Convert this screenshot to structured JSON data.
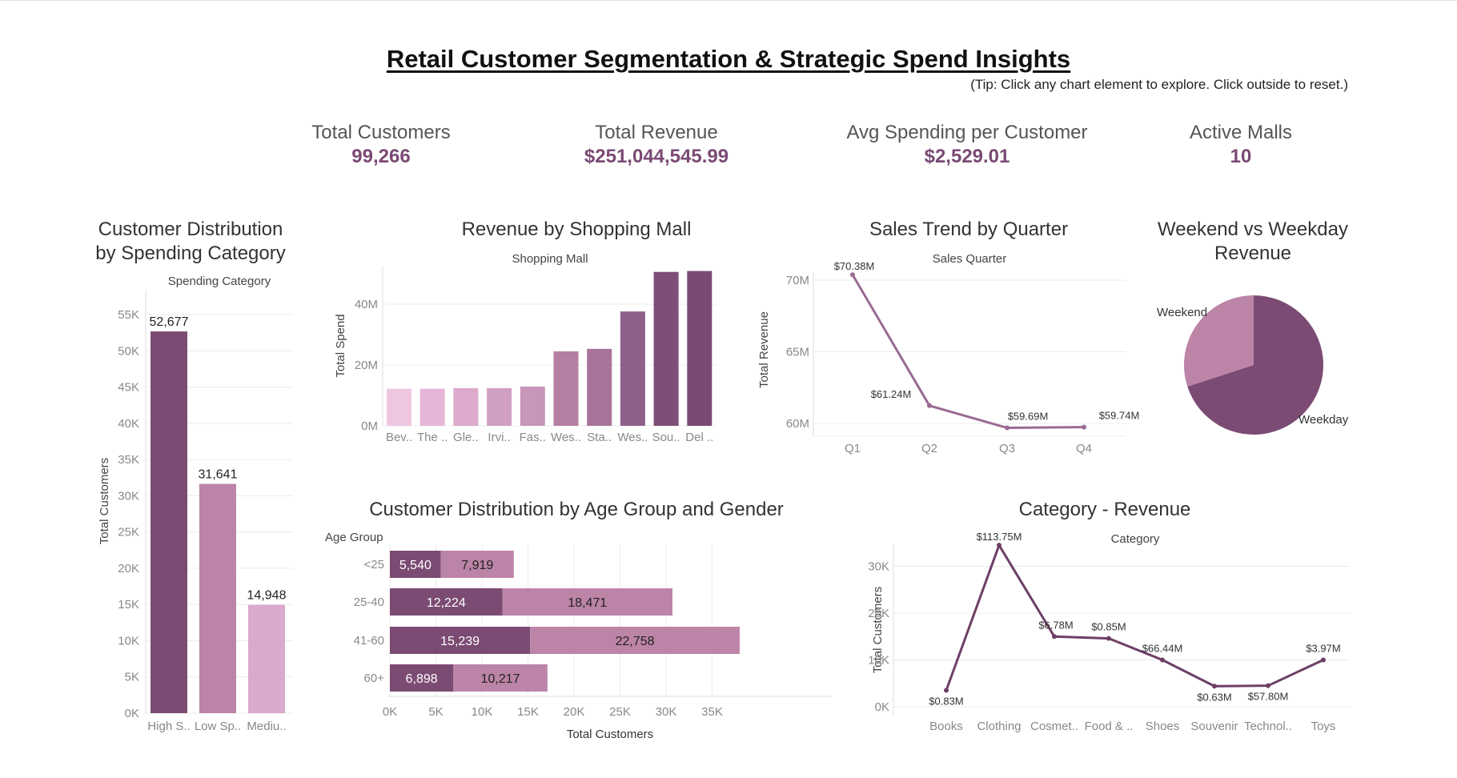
{
  "dashboard": {
    "title": "Retail Customer Segmentation & Strategic Spend Insights",
    "tip": "(Tip: Click any chart element to explore. Click outside to reset.)",
    "kpis": [
      {
        "label": "Total Customers",
        "value": "99,266"
      },
      {
        "label": "Total Revenue",
        "value": "$251,044,545.99"
      },
      {
        "label": "Avg Spending per Customer",
        "value": "$2,529.01"
      },
      {
        "label": "Active Malls",
        "value": "10"
      }
    ],
    "colors": {
      "dark": "#7b4b73",
      "mid": "#bc84a6",
      "light": "#dda7c9",
      "accent": "#7a4a74"
    }
  },
  "chart_data": [
    {
      "id": "spending",
      "type": "bar",
      "title": "Customer Distribution by Spending Category",
      "title_lines": [
        "Customer Distribution",
        "by Spending Category"
      ],
      "header": "Spending Category",
      "ylabel": "Total Customers",
      "categories": [
        "High S..",
        "Low Sp..",
        "Mediu.."
      ],
      "values": [
        52677,
        31641,
        14948
      ],
      "data_labels": [
        "52,677",
        "31,641",
        "14,948"
      ],
      "colors": [
        "#7b4b73",
        "#bc84a6",
        "#dba9cb"
      ],
      "yticks": [
        "0K",
        "5K",
        "10K",
        "15K",
        "20K",
        "25K",
        "30K",
        "35K",
        "40K",
        "45K",
        "50K",
        "55K"
      ],
      "ylim": [
        0,
        56000
      ]
    },
    {
      "id": "mall",
      "type": "bar",
      "title": "Revenue by Shopping Mall",
      "header": "Shopping Mall",
      "ylabel": "Total Spend",
      "categories": [
        "Bev..",
        "The ..",
        "Gle..",
        "Irvi..",
        "Fas..",
        "Wes..",
        "Sta..",
        "Wes..",
        "Sou..",
        "Del .."
      ],
      "values": [
        12.2,
        12.2,
        12.4,
        12.4,
        12.9,
        24.5,
        25.3,
        37.6,
        50.6,
        50.9
      ],
      "colors": [
        "#efc6e2",
        "#e7b5d6",
        "#ddaacb",
        "#d19fc0",
        "#c896b8",
        "#b57ea3",
        "#a77398",
        "#8f618a",
        "#7e4e78",
        "#7a4a74"
      ],
      "yticks": [
        "0M",
        "20M",
        "40M"
      ],
      "ylim": [
        0,
        50
      ]
    },
    {
      "id": "quarter",
      "type": "line",
      "title": "Sales Trend by Quarter",
      "header": "Sales Quarter",
      "ylabel": "Total Revenue",
      "categories": [
        "Q1",
        "Q2",
        "Q3",
        "Q4"
      ],
      "values": [
        70.38,
        61.24,
        59.69,
        59.74
      ],
      "data_labels": [
        "$70.38M",
        "$61.24M",
        "$59.69M",
        "$59.74M"
      ],
      "yticks": [
        "60M",
        "65M",
        "70M"
      ],
      "ylim": [
        59.5,
        71
      ],
      "color": "#9a6a93"
    },
    {
      "id": "weekend",
      "type": "pie",
      "title": "Weekend vs Weekday Revenue",
      "title_lines": [
        "Weekend vs Weekday",
        "Revenue"
      ],
      "slices": [
        {
          "label": "Weekday",
          "value": 0.7,
          "color": "#7b4b73"
        },
        {
          "label": "Weekend",
          "value": 0.3,
          "color": "#bc84a6"
        }
      ]
    },
    {
      "id": "agegender",
      "type": "bar",
      "orientation": "horizontal",
      "title": "Customer Distribution by Age Group and Gender",
      "header": "Age Group",
      "xlabel": "Total Customers",
      "categories": [
        "<25",
        "25-40",
        "41-60",
        "60+"
      ],
      "series": [
        {
          "values": [
            5540,
            12224,
            15239,
            6898
          ],
          "labels": [
            "5,540",
            "12,224",
            "15,239",
            "6,898"
          ],
          "color": "#7b4b73"
        },
        {
          "values": [
            7919,
            18471,
            22758,
            10217
          ],
          "labels": [
            "7,919",
            "18,471",
            "22,758",
            "10,217"
          ],
          "color": "#bc84a6"
        }
      ],
      "xticks": [
        "0K",
        "5K",
        "10K",
        "15K",
        "20K",
        "25K",
        "30K",
        "35K"
      ],
      "xlim": [
        0,
        40000
      ]
    },
    {
      "id": "category",
      "type": "line",
      "title": "Category - Revenue",
      "header": "Category",
      "ylabel": "Total Customers",
      "categories": [
        "Books",
        "Clothing",
        "Cosmet..",
        "Food & ..",
        "Shoes",
        "Souvenir",
        "Technol..",
        "Toys"
      ],
      "values": [
        3500,
        34500,
        15000,
        14600,
        10000,
        4400,
        4500,
        10000
      ],
      "data_labels": [
        "$0.83M",
        "$113.75M",
        "$6.78M",
        "$0.85M",
        "$66.44M",
        "$0.63M",
        "$57.80M",
        "$3.97M"
      ],
      "yticks": [
        "0K",
        "10K",
        "20K",
        "30K"
      ],
      "ylim": [
        0,
        36000
      ],
      "color": "#6e3f66"
    }
  ]
}
